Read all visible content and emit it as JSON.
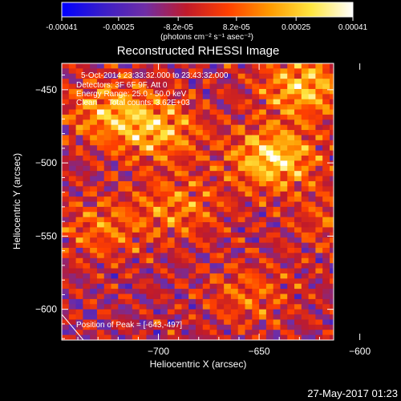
{
  "colorbar": {
    "tick_labels": [
      "-0.00041",
      "-0.00025",
      "-8.2e-05",
      "8.2e-05",
      "0.00025",
      "0.00041"
    ],
    "tick_values": [
      -0.00041,
      -0.00025,
      -8.2e-05,
      8.2e-05,
      0.00025,
      0.00041
    ],
    "range": [
      -0.00041,
      0.00041
    ],
    "units": "(photons cm⁻² s⁻¹ asec⁻²)",
    "colormap": [
      "#0000ff",
      "#3a1ec8",
      "#6f2ea6",
      "#c01a2a",
      "#ff4000",
      "#ff9a00",
      "#ffe640",
      "#ffffff"
    ]
  },
  "chart_data": {
    "type": "heatmap",
    "title": "Reconstructed RHESSI Image",
    "xlabel": "Heliocentric X (arcsec)",
    "ylabel": "Heliocentric Y (arcsec)",
    "xlim": [
      -748,
      -613
    ],
    "ylim": [
      -621,
      -432
    ],
    "x_ticks": [
      -700,
      -650,
      -600
    ],
    "y_ticks": [
      -450,
      -500,
      -550,
      -600
    ],
    "x_tick_labels": [
      "−700",
      "−650",
      "−600"
    ],
    "y_tick_labels": [
      "−450",
      "−500",
      "−550",
      "−600"
    ],
    "annotations": [
      "5-Oct-2014 23:33:32.000 to 23:43:32.000",
      "Detectors: 3F 6F 9F, Att 0",
      "Energy Range: 25.0 - 50.0 keV",
      "Clean     Total counts: 3.62E+03"
    ],
    "peak_label": "Position of Peak = [-643,-497]",
    "peak": [
      -643,
      -497
    ],
    "peak_value": 0.00041,
    "bright_regions": [
      {
        "x": -643,
        "y": -497,
        "value": 0.00041
      },
      {
        "x": -628,
        "y": -448,
        "value": 0.00035
      },
      {
        "x": -700,
        "y": -478,
        "value": 0.0003
      },
      {
        "x": -725,
        "y": -465,
        "value": 0.00028
      },
      {
        "x": -690,
        "y": -530,
        "value": 0.00022
      },
      {
        "x": -728,
        "y": -545,
        "value": 0.0002
      },
      {
        "x": -655,
        "y": -590,
        "value": 0.00018
      },
      {
        "x": -612,
        "y": -540,
        "value": 0.00015
      }
    ]
  },
  "footer": {
    "timestamp": "27-May-2017 01:23"
  }
}
